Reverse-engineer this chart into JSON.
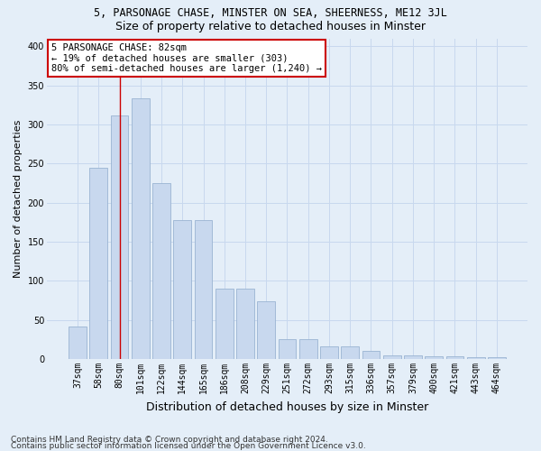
{
  "title1": "5, PARSONAGE CHASE, MINSTER ON SEA, SHEERNESS, ME12 3JL",
  "title2": "Size of property relative to detached houses in Minster",
  "xlabel": "Distribution of detached houses by size in Minster",
  "ylabel": "Number of detached properties",
  "categories": [
    "37sqm",
    "58sqm",
    "80sqm",
    "101sqm",
    "122sqm",
    "144sqm",
    "165sqm",
    "186sqm",
    "208sqm",
    "229sqm",
    "251sqm",
    "272sqm",
    "293sqm",
    "315sqm",
    "336sqm",
    "357sqm",
    "379sqm",
    "400sqm",
    "421sqm",
    "443sqm",
    "464sqm"
  ],
  "values": [
    42,
    245,
    312,
    333,
    225,
    178,
    178,
    90,
    90,
    74,
    26,
    26,
    16,
    16,
    10,
    5,
    5,
    4,
    4,
    3,
    2
  ],
  "bar_color": "#c8d8ee",
  "bar_edge_color": "#9ab4d2",
  "vline_x_index": 2,
  "vline_color": "#cc0000",
  "annotation_text": "5 PARSONAGE CHASE: 82sqm\n← 19% of detached houses are smaller (303)\n80% of semi-detached houses are larger (1,240) →",
  "annotation_box_facecolor": "#ffffff",
  "annotation_box_edgecolor": "#cc0000",
  "ylim": [
    0,
    410
  ],
  "yticks": [
    0,
    50,
    100,
    150,
    200,
    250,
    300,
    350,
    400
  ],
  "grid_color": "#c8d8ee",
  "bg_color": "#e4eef8",
  "footer1": "Contains HM Land Registry data © Crown copyright and database right 2024.",
  "footer2": "Contains public sector information licensed under the Open Government Licence v3.0.",
  "title1_fontsize": 8.5,
  "title2_fontsize": 9,
  "ylabel_fontsize": 8,
  "xlabel_fontsize": 9,
  "tick_fontsize": 7,
  "footer_fontsize": 6.5,
  "annotation_fontsize": 7.5
}
